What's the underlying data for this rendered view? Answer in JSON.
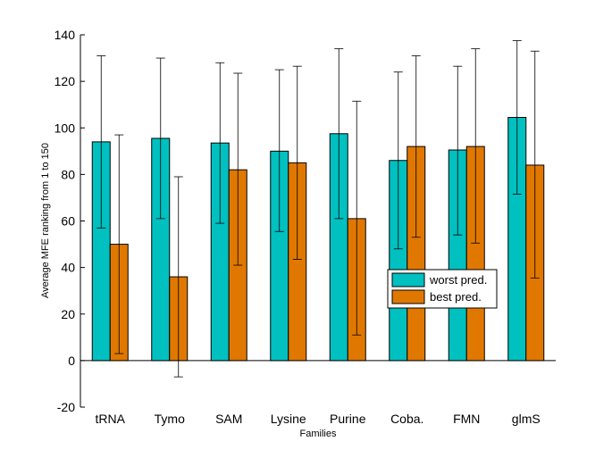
{
  "chart_data": {
    "type": "bar",
    "title": "",
    "xlabel": "Families",
    "ylabel": "Average MFE ranking from 1 to 150",
    "ylim": [
      -20,
      140
    ],
    "yticks": [
      -20,
      0,
      20,
      40,
      60,
      80,
      100,
      120,
      140
    ],
    "categories": [
      "tRNA",
      "Tymo",
      "SAM",
      "Lysine",
      "Purine",
      "Coba.",
      "FMN",
      "glmS"
    ],
    "grid": false,
    "legend_position": "right-center",
    "series": [
      {
        "name": "worst pred.",
        "color": "#00C0C0",
        "values": [
          94,
          95.5,
          93.5,
          90,
          97.5,
          86,
          90.5,
          104.5
        ],
        "err_low": [
          57,
          61,
          59,
          55.5,
          61,
          48,
          54,
          71.5
        ],
        "err_high": [
          131,
          130,
          128,
          125,
          134,
          124,
          126.5,
          137.5
        ]
      },
      {
        "name": "best pred.",
        "color": "#E07800",
        "values": [
          50,
          36,
          82,
          85,
          61,
          92,
          92,
          84
        ],
        "err_low": [
          3,
          -7,
          41,
          43.5,
          11,
          53,
          50.5,
          35.5
        ],
        "err_high": [
          97,
          79,
          123.5,
          126.5,
          111.5,
          131,
          134,
          133
        ]
      }
    ]
  }
}
